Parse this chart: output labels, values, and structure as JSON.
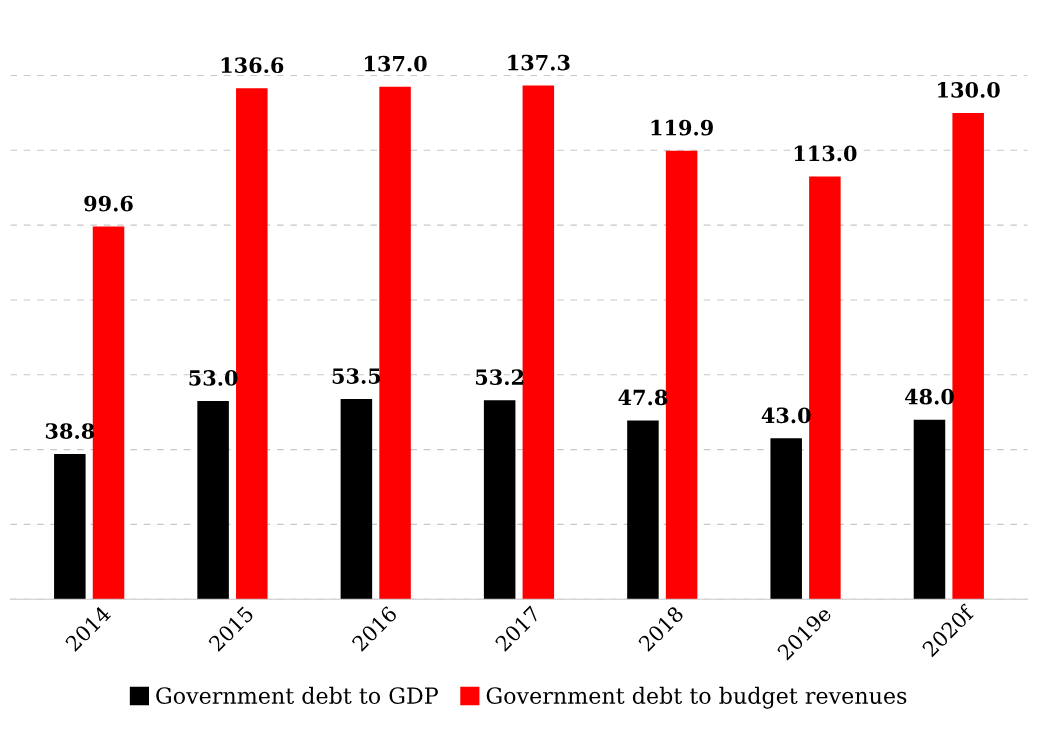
{
  "chart_data": {
    "type": "bar",
    "categories": [
      "2014",
      "2015",
      "2016",
      "2017",
      "2018",
      "2019e",
      "2020f"
    ],
    "series": [
      {
        "name": "Government debt to GDP",
        "color": "#000000",
        "values": [
          38.8,
          53.0,
          53.5,
          53.2,
          47.8,
          43.0,
          48.0
        ],
        "value_labels": [
          "38.8",
          "53.0",
          "53.5",
          "53.2",
          "47.8",
          "43.0",
          "48.0"
        ]
      },
      {
        "name": "Government debt to budget revenues",
        "color": "#ff0000",
        "values": [
          99.6,
          136.6,
          137.0,
          137.3,
          119.9,
          113.0,
          130.0
        ],
        "value_labels": [
          "99.6",
          "136.6",
          "137.0",
          "137.3",
          "119.9",
          "113.0",
          "130.0"
        ]
      }
    ],
    "yticks": [
      {
        "value": 0,
        "label": null
      },
      {
        "value": 20,
        "label": null
      },
      {
        "value": 40,
        "label": null
      },
      {
        "value": 60,
        "label": null
      },
      {
        "value": 80,
        "label": null
      },
      {
        "value": 100,
        "label": null
      },
      {
        "value": 120,
        "label": null
      },
      {
        "value": 140,
        "label": null
      }
    ],
    "grid": "y",
    "legend": "bottom",
    "tick_labels": "x"
  }
}
